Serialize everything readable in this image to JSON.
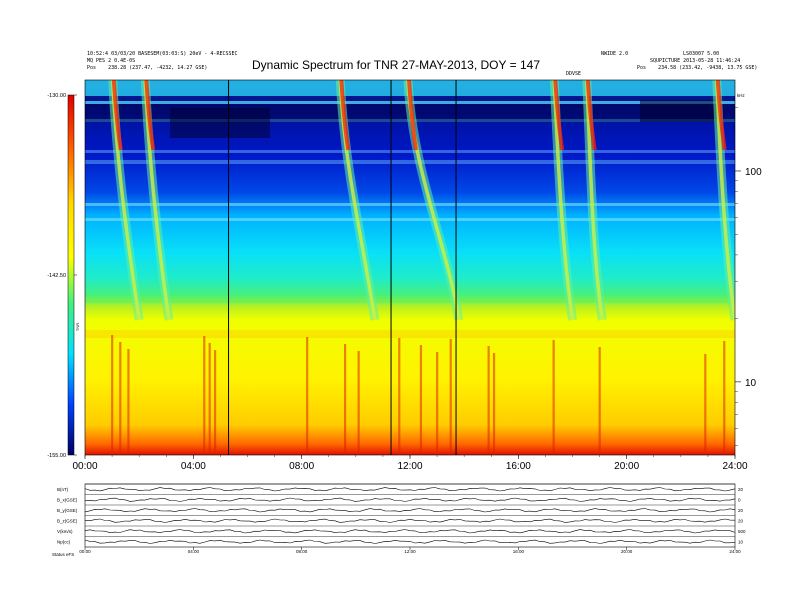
{
  "header": {
    "title": "Dynamic Spectrum for TNR 27-MAY-2013, DOY = 147",
    "left_line1": "10:52:4 03/03/20 BASESEM(03:03:S) 20eV - 4-RECSSEC",
    "left_line2": "MQ PES 2 0.4E-0S",
    "left_line3": "Pos    238.28 (237.47, -4232, 14.27 GSE)",
    "right_top_a": "NWIDE 2.0",
    "right_top_b": "LS03007 5.00",
    "right_line2": "SQUPICTURE 2013-05-28 11:46:24",
    "right_line3": "Pos    234.58 (233.42, -9438, 13.75 GSE)",
    "mid_label": "DDVSE"
  },
  "chart_data": [
    {
      "type": "heatmap",
      "title": "Dynamic Spectrum for TNR 27-MAY-2013, DOY = 147",
      "x_ticks": [
        "00:00",
        "04:00",
        "08:00",
        "12:00",
        "16:00",
        "20:00",
        "24:00"
      ],
      "xlim_hours": [
        0,
        24
      ],
      "y_ticks": [
        "100",
        "10"
      ],
      "y_units": "kHz",
      "y_scale": "log",
      "ylim_khz": [
        4.5,
        270
      ],
      "colorbar": {
        "ticks": [
          "-130.00",
          "-142.50",
          "-155.00"
        ],
        "label": "TNR",
        "range": [
          -155,
          -130
        ]
      },
      "marker_lines_hours": [
        5.3,
        11.3,
        13.7
      ],
      "type_iii_bursts": [
        {
          "start_hour": 1.1,
          "drift_hours": 0.9
        },
        {
          "start_hour": 2.3,
          "drift_hours": 0.8
        },
        {
          "start_hour": 9.5,
          "drift_hours": 1.2
        },
        {
          "start_hour": 12.0,
          "drift_hours": 1.8
        },
        {
          "start_hour": 17.4,
          "drift_hours": 0.6
        },
        {
          "start_hour": 18.6,
          "drift_hours": 0.5
        },
        {
          "start_hour": 23.4,
          "drift_hours": 0.6
        }
      ]
    },
    {
      "type": "line",
      "panels": [
        {
          "label": "B(nT)",
          "tick": "20"
        },
        {
          "label": "B_x(GSE)",
          "tick": "0"
        },
        {
          "label": "B_y(GSE)",
          "tick": "20"
        },
        {
          "label": "B_z(GSE)",
          "tick": "20"
        },
        {
          "label": "V(km/s)",
          "tick": "500"
        },
        {
          "label": "Np(cc)",
          "tick": "10"
        }
      ],
      "x_ticks": [
        "00:00",
        "04:00",
        "08:00",
        "12:00",
        "16:00",
        "20:00",
        "24:00"
      ],
      "footer_label": "Status   eFS"
    }
  ]
}
